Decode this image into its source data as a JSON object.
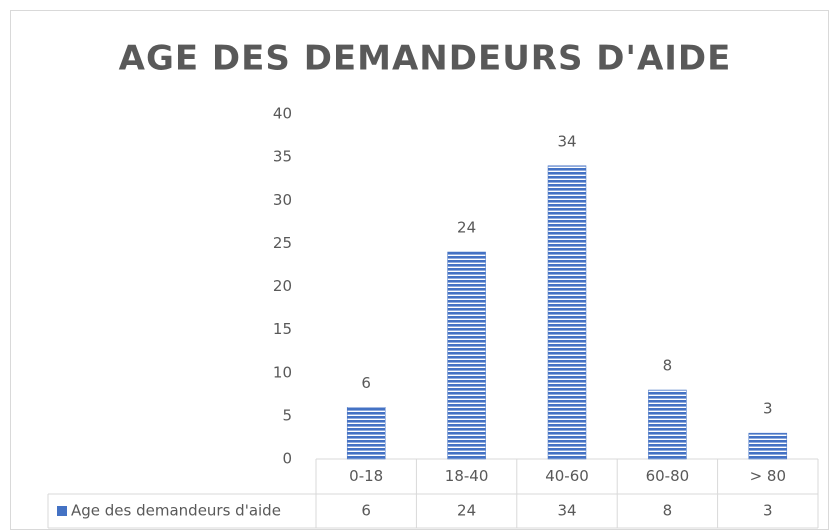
{
  "chart_data": {
    "type": "bar",
    "title": "AGE DES DEMANDEURS D'AIDE",
    "categories": [
      "0-18",
      "18-40",
      "40-60",
      "60-80",
      "> 80"
    ],
    "series": [
      {
        "name": "Age des demandeurs d'aide",
        "color": "#4472c4",
        "values": [
          6,
          24,
          34,
          8,
          3
        ]
      }
    ],
    "ylim": [
      0,
      40
    ],
    "yticks": [
      0,
      5,
      10,
      15,
      20,
      25,
      30,
      35,
      40
    ],
    "grid": false,
    "data_table": true
  }
}
